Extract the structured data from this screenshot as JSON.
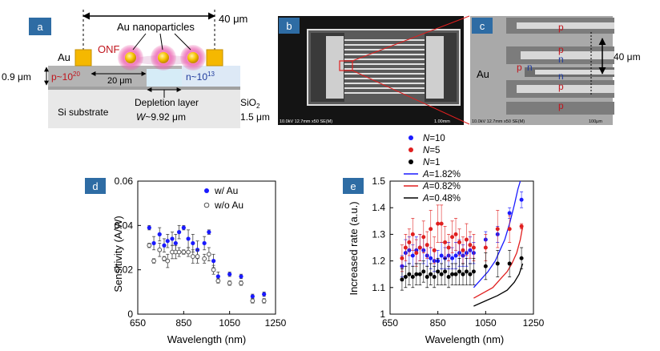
{
  "panels": {
    "a": {
      "badge": "a",
      "dim_top": "40 μm",
      "au_nanoparticles": "Au nanoparticles",
      "au": "Au",
      "onf": "ONF",
      "thickness": "0.9 μm",
      "p_doping": "p~10",
      "p_exp": "20",
      "n_doping": "n~10",
      "n_exp": "13",
      "width_20": "20 μm",
      "depletion": "Depletion layer",
      "w_sym": "W",
      "w_val": "~9.92 μm",
      "sio2": "SiO",
      "sio2_sub": "2",
      "si_substrate": "Si substrate",
      "sio2_thickness": "1.5 μm",
      "colors": {
        "badge": "#2e6ca4",
        "au_pad": "#f5b800",
        "np_glow": "#e64da0",
        "p_text": "#c0141c",
        "n_text": "#1f3a9c",
        "depletion": "#d6ecf7"
      }
    },
    "b": {
      "badge": "b",
      "sem_info": "10.0kV 12.7mm x50 SE(M)",
      "scale": "1.00mm"
    },
    "c": {
      "badge": "c",
      "au": "Au",
      "p": "p",
      "n": "n",
      "dim": "40 μm",
      "sem_info": "10.0kV 12.7mm x50 SE(M)",
      "scale": "100μm"
    }
  },
  "chart_d": {
    "badge": "d",
    "chart_data": {
      "type": "scatter",
      "xlabel": "Wavelength (nm)",
      "ylabel": "Sensitivity (A/W)",
      "xlim": [
        650,
        1250
      ],
      "ylim": [
        0,
        0.06
      ],
      "xticks": [
        "650",
        "850",
        "1050",
        "1250"
      ],
      "yticks": [
        "0",
        "0.02",
        "0.04",
        "0.06"
      ],
      "legend": [
        "w/ Au",
        "w/o Au"
      ],
      "legend_position": "top-right",
      "series": [
        {
          "name": "w/ Au",
          "color": "#1a1aff",
          "marker": "filled",
          "x": [
            700,
            720,
            745,
            765,
            780,
            800,
            815,
            830,
            850,
            870,
            890,
            910,
            940,
            960,
            980,
            1000,
            1050,
            1100,
            1150,
            1200
          ],
          "y": [
            0.039,
            0.032,
            0.036,
            0.031,
            0.033,
            0.034,
            0.032,
            0.037,
            0.039,
            0.034,
            0.032,
            0.029,
            0.032,
            0.037,
            0.024,
            0.017,
            0.018,
            0.017,
            0.008,
            0.009
          ],
          "err": [
            0.001,
            0.003,
            0.003,
            0.003,
            0.003,
            0.003,
            0.004,
            0.003,
            0.001,
            0.004,
            0.004,
            0.004,
            0.003,
            0.001,
            0.003,
            0.002,
            0.001,
            0.001,
            0.001,
            0.001
          ]
        },
        {
          "name": "w/o Au",
          "color": "#555555",
          "marker": "open",
          "x": [
            700,
            720,
            745,
            765,
            780,
            800,
            815,
            830,
            850,
            870,
            890,
            910,
            940,
            960,
            980,
            1000,
            1050,
            1100,
            1150,
            1200
          ],
          "y": [
            0.031,
            0.024,
            0.029,
            0.025,
            0.024,
            0.028,
            0.028,
            0.028,
            0.028,
            0.028,
            0.026,
            0.026,
            0.025,
            0.027,
            0.02,
            0.015,
            0.014,
            0.014,
            0.006,
            0.006
          ],
          "err": [
            0.001,
            0.001,
            0.003,
            0.001,
            0.003,
            0.003,
            0.003,
            0.002,
            0.001,
            0.002,
            0.003,
            0.003,
            0.002,
            0.003,
            0.002,
            0.001,
            0.001,
            0.001,
            0.001,
            0.001
          ]
        }
      ]
    }
  },
  "chart_e": {
    "badge": "e",
    "chart_data": {
      "type": "scatter",
      "xlabel": "Wavelength (nm)",
      "ylabel": "Increased rate (a.u.)",
      "xlim": [
        650,
        1250
      ],
      "ylim": [
        1.0,
        1.5
      ],
      "xticks": [
        "650",
        "850",
        "1050",
        "1250"
      ],
      "yticks": [
        "1",
        "1.1",
        "1.2",
        "1.3",
        "1.4",
        "1.5"
      ],
      "legend": [
        {
          "sym": "N",
          "rest": "=10",
          "color": "#1a1aff",
          "kind": "point"
        },
        {
          "sym": "N",
          "rest": "=5",
          "color": "#e01f1f",
          "kind": "point"
        },
        {
          "sym": "N",
          "rest": "=1",
          "color": "#000000",
          "kind": "point"
        },
        {
          "sym": "A",
          "rest": "=1.82%",
          "color": "#1a1aff",
          "kind": "line"
        },
        {
          "sym": "A",
          "rest": "=0.82%",
          "color": "#e01f1f",
          "kind": "line"
        },
        {
          "sym": "A",
          "rest": "=0.48%",
          "color": "#000000",
          "kind": "line"
        }
      ],
      "legend_position": "top-left outside",
      "series": [
        {
          "name": "N=10",
          "color": "#1a1aff",
          "x": [
            700,
            715,
            730,
            745,
            760,
            775,
            790,
            805,
            820,
            835,
            850,
            865,
            880,
            895,
            910,
            925,
            940,
            955,
            970,
            985,
            1000,
            1050,
            1100,
            1150,
            1200
          ],
          "y": [
            1.18,
            1.23,
            1.24,
            1.22,
            1.24,
            1.25,
            1.24,
            1.22,
            1.21,
            1.2,
            1.2,
            1.22,
            1.21,
            1.22,
            1.21,
            1.22,
            1.23,
            1.22,
            1.23,
            1.24,
            1.23,
            1.28,
            1.3,
            1.38,
            1.43
          ],
          "err": [
            0.04,
            0.05,
            0.05,
            0.04,
            0.05,
            0.05,
            0.05,
            0.04,
            0.04,
            0.04,
            0.04,
            0.05,
            0.04,
            0.05,
            0.04,
            0.05,
            0.05,
            0.04,
            0.05,
            0.05,
            0.04,
            0.03,
            0.03,
            0.02,
            0.03
          ]
        },
        {
          "name": "N=5",
          "color": "#e01f1f",
          "x": [
            700,
            715,
            730,
            745,
            760,
            775,
            790,
            805,
            820,
            835,
            850,
            865,
            880,
            895,
            910,
            925,
            940,
            955,
            970,
            985,
            1000,
            1050,
            1100,
            1150,
            1200
          ],
          "y": [
            1.21,
            1.25,
            1.27,
            1.3,
            1.23,
            1.25,
            1.29,
            1.26,
            1.32,
            1.24,
            1.34,
            1.34,
            1.27,
            1.25,
            1.29,
            1.3,
            1.27,
            1.24,
            1.28,
            1.26,
            1.25,
            1.25,
            1.32,
            1.32,
            1.33
          ],
          "err": [
            0.05,
            0.05,
            0.05,
            0.06,
            0.05,
            0.05,
            0.06,
            0.05,
            0.07,
            0.05,
            0.07,
            0.07,
            0.06,
            0.05,
            0.06,
            0.06,
            0.05,
            0.05,
            0.06,
            0.05,
            0.05,
            0.05,
            0.07,
            0.05,
            0.01
          ]
        },
        {
          "name": "N=1",
          "color": "#000000",
          "x": [
            700,
            715,
            730,
            745,
            760,
            775,
            790,
            805,
            820,
            835,
            850,
            865,
            880,
            895,
            910,
            925,
            940,
            955,
            970,
            985,
            1000,
            1050,
            1100,
            1150,
            1200
          ],
          "y": [
            1.13,
            1.14,
            1.15,
            1.14,
            1.15,
            1.15,
            1.16,
            1.14,
            1.15,
            1.14,
            1.16,
            1.15,
            1.16,
            1.14,
            1.15,
            1.15,
            1.16,
            1.15,
            1.16,
            1.15,
            1.16,
            1.18,
            1.19,
            1.19,
            1.21
          ],
          "err": [
            0.04,
            0.04,
            0.04,
            0.04,
            0.04,
            0.04,
            0.04,
            0.04,
            0.04,
            0.04,
            0.05,
            0.04,
            0.05,
            0.04,
            0.04,
            0.04,
            0.05,
            0.04,
            0.05,
            0.04,
            0.05,
            0.05,
            0.05,
            0.05,
            0.04
          ]
        }
      ],
      "curves": [
        {
          "name": "A=1.82%",
          "color": "#1a1aff",
          "x": [
            1000,
            1030,
            1060,
            1090,
            1110,
            1130,
            1150,
            1170,
            1185,
            1195
          ],
          "y": [
            1.1,
            1.13,
            1.16,
            1.2,
            1.24,
            1.28,
            1.34,
            1.41,
            1.47,
            1.52
          ]
        },
        {
          "name": "A=0.82%",
          "color": "#e01f1f",
          "x": [
            1000,
            1040,
            1080,
            1110,
            1140,
            1160,
            1180,
            1195,
            1205
          ],
          "y": [
            1.06,
            1.08,
            1.1,
            1.13,
            1.16,
            1.19,
            1.23,
            1.28,
            1.33
          ]
        },
        {
          "name": "A=0.48%",
          "color": "#000000",
          "x": [
            1000,
            1050,
            1100,
            1140,
            1170,
            1190,
            1205
          ],
          "y": [
            1.03,
            1.05,
            1.07,
            1.09,
            1.12,
            1.15,
            1.19
          ]
        }
      ]
    }
  }
}
